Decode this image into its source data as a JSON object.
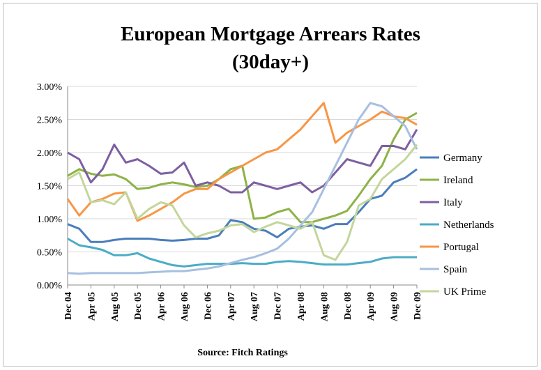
{
  "chart_data": {
    "type": "line",
    "title": [
      "European Mortgage Arrears Rates",
      "(30day+)"
    ],
    "source": "Source: Fitch Ratings",
    "categories": [
      "Dec 04",
      null,
      "Apr 05",
      null,
      "Aug 05",
      null,
      "Dec 05",
      null,
      "Apr 06",
      null,
      "Aug 06",
      null,
      "Dec 06",
      null,
      "Apr 07",
      null,
      "Aug 07",
      null,
      "Dec 07",
      null,
      "Apr 08",
      null,
      "Aug 08",
      null,
      "Dec 08",
      null,
      "Apr 09",
      null,
      "Aug 09",
      null,
      "Dec 09"
    ],
    "ylim": [
      0,
      3
    ],
    "yticks": [
      {
        "value": 0,
        "label": "0.00%"
      },
      {
        "value": 0.5,
        "label": "0.50%"
      },
      {
        "value": 1,
        "label": "1.00%"
      },
      {
        "value": 1.5,
        "label": "1.50%"
      },
      {
        "value": 2,
        "label": "2.00%"
      },
      {
        "value": 2.5,
        "label": "2.50%"
      },
      {
        "value": 3,
        "label": "3.00%"
      }
    ],
    "grid": true,
    "legend": "right",
    "series": [
      {
        "name": "Germany",
        "color": "#4a7ebb",
        "values": [
          0.92,
          0.85,
          0.65,
          0.65,
          0.68,
          0.7,
          0.7,
          0.7,
          0.68,
          0.67,
          0.68,
          0.7,
          0.7,
          0.75,
          0.98,
          0.95,
          0.85,
          0.82,
          0.72,
          0.85,
          0.88,
          0.9,
          0.85,
          0.92,
          0.92,
          1.1,
          1.3,
          1.35,
          1.55,
          1.62,
          1.75
        ]
      },
      {
        "name": "Ireland",
        "color": "#8db346",
        "values": [
          1.65,
          1.75,
          1.68,
          1.65,
          1.67,
          1.6,
          1.45,
          1.47,
          1.52,
          1.55,
          1.52,
          1.48,
          1.5,
          1.6,
          1.75,
          1.8,
          1.0,
          1.02,
          1.1,
          1.15,
          0.95,
          0.95,
          1.0,
          1.05,
          1.12,
          1.35,
          1.6,
          1.8,
          2.2,
          2.5,
          2.6
        ]
      },
      {
        "name": "Italy",
        "color": "#7d5fa0",
        "values": [
          2.0,
          1.9,
          1.55,
          1.75,
          2.12,
          1.85,
          1.9,
          1.8,
          1.68,
          1.7,
          1.85,
          1.5,
          1.55,
          1.5,
          1.4,
          1.4,
          1.55,
          1.5,
          1.45,
          1.5,
          1.55,
          1.4,
          1.5,
          1.7,
          1.9,
          1.85,
          1.8,
          2.1,
          2.1,
          2.05,
          2.35
        ]
      },
      {
        "name": "Netherlands",
        "color": "#4bacc6",
        "values": [
          0.7,
          0.6,
          0.57,
          0.53,
          0.45,
          0.45,
          0.48,
          0.4,
          0.35,
          0.3,
          0.28,
          0.3,
          0.32,
          0.32,
          0.32,
          0.33,
          0.32,
          0.32,
          0.35,
          0.36,
          0.35,
          0.33,
          0.31,
          0.31,
          0.31,
          0.33,
          0.35,
          0.4,
          0.42,
          0.42,
          0.42
        ]
      },
      {
        "name": "Portugal",
        "color": "#f79646",
        "values": [
          1.3,
          1.05,
          1.25,
          1.3,
          1.38,
          1.4,
          0.97,
          1.05,
          1.15,
          1.25,
          1.38,
          1.45,
          1.45,
          1.6,
          1.7,
          1.8,
          1.9,
          2.0,
          2.05,
          2.2,
          2.35,
          2.55,
          2.75,
          2.15,
          2.3,
          2.4,
          2.5,
          2.62,
          2.55,
          2.52,
          2.42
        ]
      },
      {
        "name": "Spain",
        "color": "#a7bfe0",
        "values": [
          0.18,
          0.17,
          0.18,
          0.18,
          0.18,
          0.18,
          0.18,
          0.19,
          0.2,
          0.21,
          0.21,
          0.23,
          0.25,
          0.28,
          0.33,
          0.38,
          0.42,
          0.48,
          0.55,
          0.7,
          0.9,
          1.1,
          1.45,
          1.8,
          2.15,
          2.5,
          2.75,
          2.7,
          2.55,
          2.4,
          2.05
        ]
      },
      {
        "name": "UK Prime",
        "color": "#c3d69b",
        "values": [
          1.6,
          1.7,
          1.25,
          1.28,
          1.22,
          1.4,
          1.0,
          1.15,
          1.25,
          1.2,
          0.9,
          0.72,
          0.78,
          0.82,
          0.9,
          0.92,
          0.8,
          0.88,
          0.95,
          0.9,
          0.85,
          0.95,
          0.45,
          0.38,
          0.65,
          1.2,
          1.3,
          1.6,
          1.75,
          1.9,
          2.12
        ]
      }
    ]
  }
}
